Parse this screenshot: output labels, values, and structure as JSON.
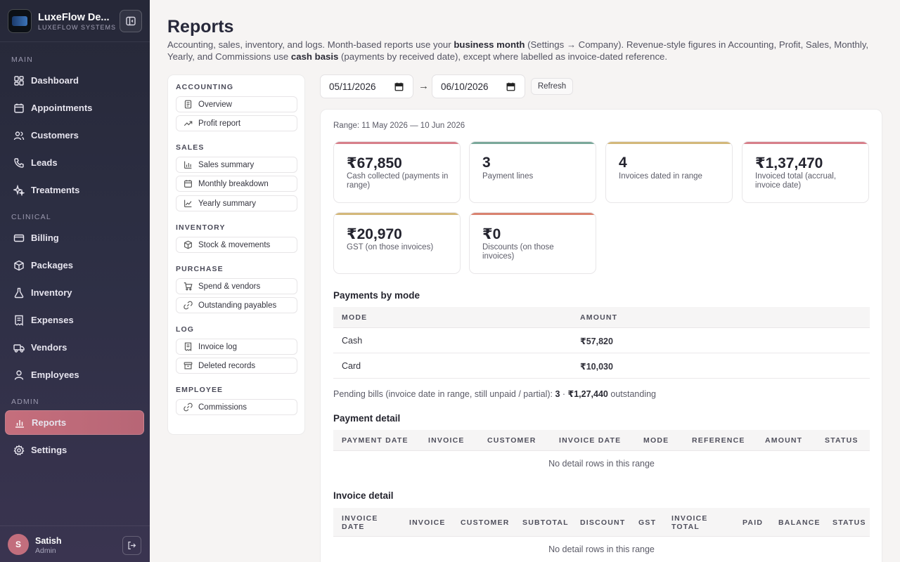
{
  "sidebar": {
    "brand_name": "LuxeFlow De...",
    "brand_sub": "LUXEFLOW SYSTEMS",
    "sections": {
      "main": "MAIN",
      "clinical": "CLINICAL",
      "admin": "ADMIN"
    },
    "items": {
      "dashboard": "Dashboard",
      "appointments": "Appointments",
      "customers": "Customers",
      "leads": "Leads",
      "treatments": "Treatments",
      "billing": "Billing",
      "packages": "Packages",
      "inventory": "Inventory",
      "expenses": "Expenses",
      "vendors": "Vendors",
      "employees": "Employees",
      "reports": "Reports",
      "settings": "Settings"
    },
    "active_item": "reports",
    "user": {
      "initial": "S",
      "name": "Satish",
      "role": "Admin"
    }
  },
  "header": {
    "title": "Reports",
    "desc_1": "Accounting, sales, inventory, and logs. Month-based reports use your ",
    "desc_b1": "business month",
    "desc_2": " (Settings → Company). Revenue-style figures in Accounting, Profit, Sales, Monthly, Yearly, and Commissions use ",
    "desc_b2": "cash basis",
    "desc_3": " (payments by received date), except where labelled as invoice-dated reference."
  },
  "report_nav": {
    "accounting": "ACCOUNTING",
    "overview": "Overview",
    "profit_report": "Profit report",
    "sales": "SALES",
    "sales_summary": "Sales summary",
    "monthly_breakdown": "Monthly breakdown",
    "yearly_summary": "Yearly summary",
    "inventory": "INVENTORY",
    "stock_movements": "Stock & movements",
    "purchase": "PURCHASE",
    "spend_vendors": "Spend & vendors",
    "outstanding_payables": "Outstanding payables",
    "log": "LOG",
    "invoice_log": "Invoice log",
    "deleted_records": "Deleted records",
    "employee": "EMPLOYEE",
    "commissions": "Commissions"
  },
  "filters": {
    "from_date": "05/11/2026",
    "to_date": "06/10/2026",
    "arrow": "→",
    "refresh": "Refresh"
  },
  "range_text": "Range: 11 May 2026 — 10 Jun 2026",
  "stats": [
    {
      "value": "₹67,850",
      "label": "Cash collected (payments in range)",
      "color": "#d77f8a"
    },
    {
      "value": "3",
      "label": "Payment lines",
      "color": "#7aa89a"
    },
    {
      "value": "4",
      "label": "Invoices dated in range",
      "color": "#d3b87a"
    },
    {
      "value": "₹1,37,470",
      "label": "Invoiced total (accrual, invoice date)",
      "color": "#d77f8a"
    },
    {
      "value": "₹20,970",
      "label": "GST (on those invoices)",
      "color": "#d3b87a"
    },
    {
      "value": "₹0",
      "label": "Discounts (on those invoices)",
      "color": "#d9826f"
    }
  ],
  "payments_by_mode": {
    "title": "Payments by mode",
    "col_mode": "MODE",
    "col_amount": "AMOUNT",
    "rows": [
      {
        "mode": "Cash",
        "amount": "₹57,820"
      },
      {
        "mode": "Card",
        "amount": "₹10,030"
      }
    ]
  },
  "pending": {
    "prefix": "Pending bills (invoice date in range, still unpaid / partial): ",
    "count": "3",
    "sep": " · ",
    "amount": "₹1,27,440",
    "suffix": " outstanding"
  },
  "payment_detail": {
    "title": "Payment detail",
    "cols": [
      "PAYMENT DATE",
      "INVOICE",
      "CUSTOMER",
      "INVOICE DATE",
      "MODE",
      "REFERENCE",
      "AMOUNT",
      "STATUS"
    ],
    "empty": "No detail rows in this range"
  },
  "invoice_detail": {
    "title": "Invoice detail",
    "cols": [
      "INVOICE",
      "CUSTOMER",
      "SUBTOTAL",
      "DISCOUNT",
      "GST",
      "PAID",
      "BALANCE",
      "STATUS"
    ],
    "col_invoice_date_1": "INVOICE",
    "col_invoice_date_2": "DATE",
    "col_invoice_total_1": "INVOICE",
    "col_invoice_total_2": "TOTAL",
    "empty": "No detail rows in this range"
  }
}
